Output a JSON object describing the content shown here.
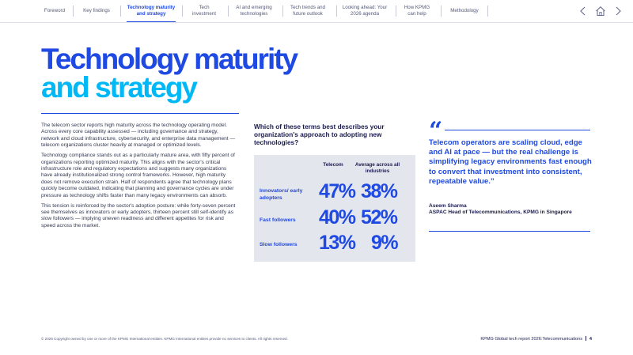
{
  "nav": {
    "tabs": [
      {
        "label": "Foreword"
      },
      {
        "label": "Key findings"
      },
      {
        "label": "Technology maturity and strategy",
        "active": true
      },
      {
        "label": "Tech investment"
      },
      {
        "label": "AI and emerging technologies"
      },
      {
        "label": "Tech trends and future outlook"
      },
      {
        "label": "Looking ahead: Your 2026 agenda"
      },
      {
        "label": "How KPMG can help"
      },
      {
        "label": "Methodology"
      }
    ],
    "icons": [
      "arrow-left-icon",
      "home-icon",
      "arrow-right-icon"
    ]
  },
  "title": {
    "line1": "Technology maturity",
    "line2": "and strategy"
  },
  "body": {
    "paragraphs": [
      "The telecom sector reports high maturity across the technology operating model. Across every core capability assessed — including governance and strategy, network and cloud infrastructure, cybersecurity, and enterprise data management — telecom organizations cluster heavily at managed or optimized levels.",
      "Technology compliance stands out as a particularly mature area, with fifty percent of organizations reporting optimized maturity. This aligns with the sector's critical infrastructure role and regulatory expectations and suggests many organizations have already institutionalized strong control frameworks. However, high maturity does not remove execution strain. Half of respondents agree that technology plans quickly become outdated, indicating that planning and governance cycles are under pressure as technology shifts faster than many legacy environments can absorb.",
      "This tension is reinforced by the sector's adoption posture: while forty-seven percent see themselves as innovators or early adopters, thirteen percent still self-identify as slow followers — implying uneven readiness and different appetites for risk and speed across the market."
    ]
  },
  "question": "Which of these terms best describes your organization's approach to adopting new technologies?",
  "chart_data": {
    "type": "table",
    "columns": [
      "Telecom",
      "Average across all industries"
    ],
    "rows": [
      {
        "label": "Innovators/ early adopters",
        "values": [
          "47%",
          "38%"
        ]
      },
      {
        "label": "Fast followers",
        "values": [
          "40%",
          "52%"
        ]
      },
      {
        "label": "Slow followers",
        "values": [
          "13%",
          "9%"
        ]
      }
    ]
  },
  "quote": {
    "mark": "“",
    "text": "Telecom operators are scaling cloud, edge and AI at pace — but the real challenge is simplifying legacy environments fast enough to convert that investment into consistent, repeatable value.”",
    "name": "Aseem Sharma",
    "role": "ASPAC Head of Telecommunications, KPMG in Singapore"
  },
  "footer": {
    "copyright": "© 2026 Copyright owned by one or more of the KPMG International entities. KPMG International entities provide no services to clients. All rights reserved.",
    "report": "KPMG Global tech report 2026:Telecommunications",
    "page": "4"
  },
  "colors": {
    "primary": "#1e49e2",
    "accent": "#00b8f5",
    "panel": "#e4e6ee"
  }
}
